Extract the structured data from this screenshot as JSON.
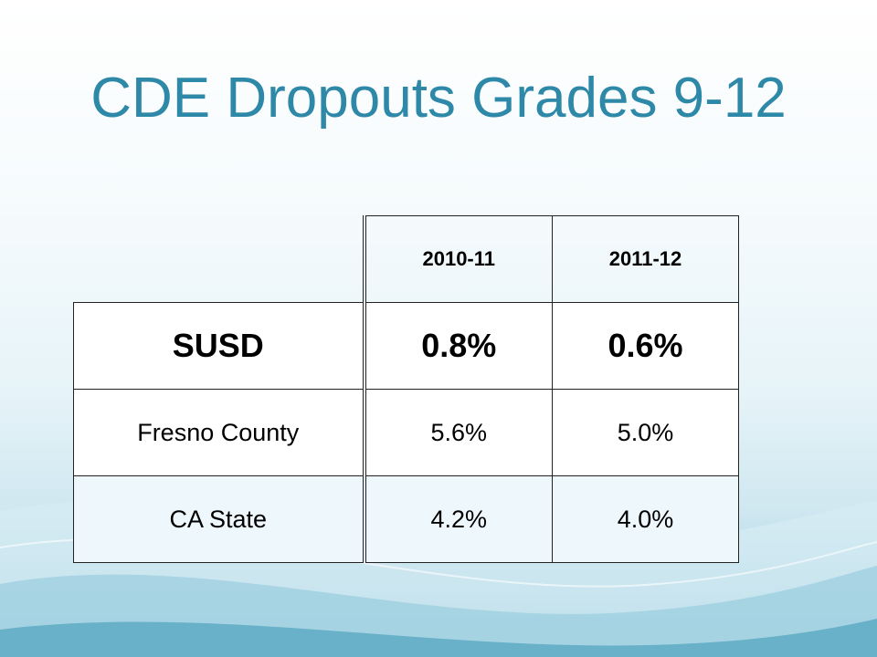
{
  "slide": {
    "title": "CDE Dropouts Grades 9-12"
  },
  "table": {
    "columns": [
      "",
      "2010-11",
      "2011-12"
    ],
    "rows": [
      {
        "label": "SUSD",
        "values": [
          "0.8%",
          "0.6%"
        ]
      },
      {
        "label": "Fresno County",
        "values": [
          "5.6%",
          "5.0%"
        ]
      },
      {
        "label": "CA State",
        "values": [
          "4.2%",
          "4.0%"
        ]
      }
    ]
  },
  "colors": {
    "title": "#2e88a8",
    "wave_light": "#cfe7f0",
    "wave_dark": "#5ea9c4"
  }
}
